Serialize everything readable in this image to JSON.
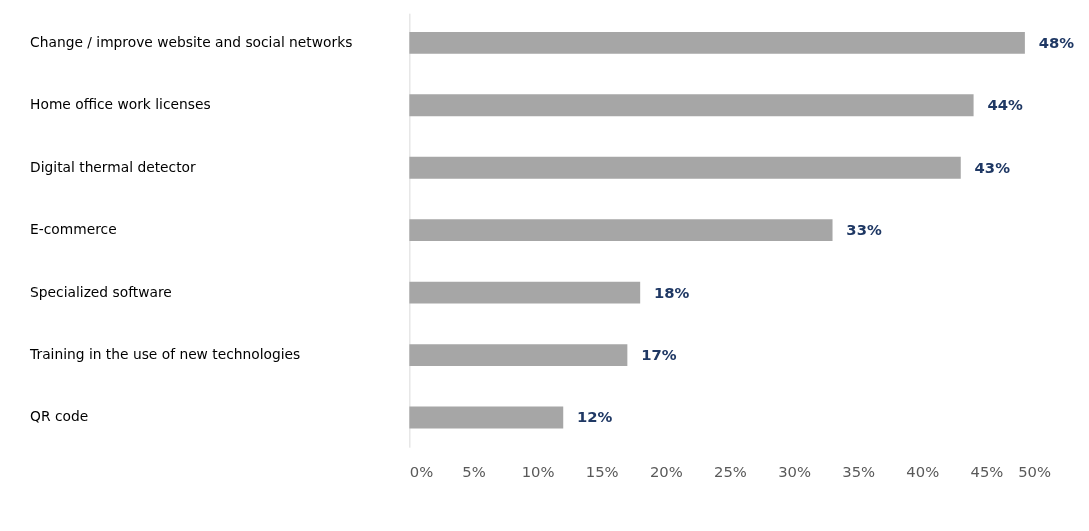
{
  "chart_data": {
    "type": "bar",
    "orientation": "horizontal",
    "categories": [
      "Change / improve website and social networks",
      "Home office work licenses",
      "Digital thermal detector",
      "E-commerce",
      "Specialized software",
      "Training in the use of new technologies",
      "QR code"
    ],
    "values": [
      48,
      44,
      43,
      33,
      18,
      17,
      12
    ],
    "color": "#a6a6a6",
    "value_labels": [
      "48%",
      "44%",
      "43%",
      "33%",
      "18%",
      "17%",
      "12%"
    ],
    "xlim": [
      0,
      50
    ],
    "xticks": [
      {
        "value": 0,
        "label": "0%"
      },
      {
        "value": 5,
        "label": "5%"
      },
      {
        "value": 10,
        "label": "10%"
      },
      {
        "value": 15,
        "label": "15%"
      },
      {
        "value": 20,
        "label": "20%"
      },
      {
        "value": 25,
        "label": "25%"
      },
      {
        "value": 30,
        "label": "30%"
      },
      {
        "value": 35,
        "label": "35%"
      },
      {
        "value": 40,
        "label": "40%"
      },
      {
        "value": 45,
        "label": "45%"
      },
      {
        "value": 50,
        "label": "50%"
      }
    ],
    "grid": false
  }
}
